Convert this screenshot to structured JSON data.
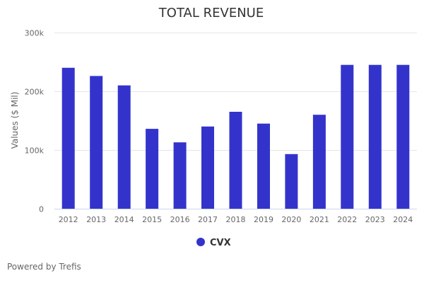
{
  "chart_data": {
    "type": "bar",
    "title": "TOTAL REVENUE",
    "xlabel": "",
    "ylabel": "Values ($ Mil)",
    "ylim": [
      0,
      300000
    ],
    "yticks": [
      {
        "value": 0,
        "label": "0"
      },
      {
        "value": 100000,
        "label": "100k"
      },
      {
        "value": 200000,
        "label": "200k"
      },
      {
        "value": 300000,
        "label": "300k"
      }
    ],
    "grid": true,
    "legend_position": "bottom",
    "categories": [
      "2012",
      "2013",
      "2014",
      "2015",
      "2016",
      "2017",
      "2018",
      "2019",
      "2020",
      "2021",
      "2022",
      "2023",
      "2024"
    ],
    "series": [
      {
        "name": "CVX",
        "color": "#3333cc",
        "values": [
          240000,
          226000,
          210000,
          136000,
          113000,
          140000,
          165000,
          145000,
          93000,
          160000,
          245000,
          245000,
          245000
        ]
      }
    ]
  },
  "credit": "Powered by Trefis"
}
